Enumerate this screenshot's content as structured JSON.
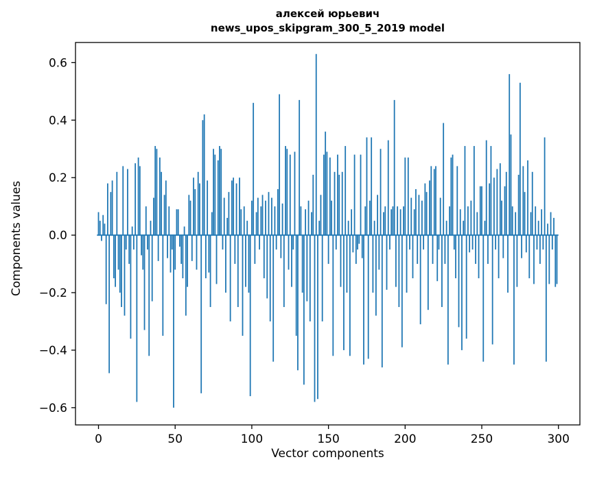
{
  "chart_data": {
    "type": "bar",
    "title": "алексей юрьевич",
    "subtitle": "news_upos_skipgram_300_5_2019 model",
    "xlabel": "Vector components",
    "ylabel": "Components values",
    "xlim": [
      -15,
      314
    ],
    "ylim": [
      -0.66,
      0.67
    ],
    "x_ticks": [
      0,
      50,
      100,
      150,
      200,
      250,
      300
    ],
    "y_ticks": [
      -0.6,
      -0.4,
      -0.2,
      0.0,
      0.2,
      0.4,
      0.6
    ],
    "bar_color": "#1f77b4",
    "grid": false,
    "legend": "none",
    "x": "component index 0..299",
    "values": [
      0.08,
      0.05,
      -0.02,
      0.07,
      0.04,
      -0.24,
      0.18,
      -0.48,
      0.15,
      0.19,
      -0.15,
      -0.18,
      0.22,
      -0.12,
      -0.2,
      -0.25,
      0.24,
      -0.28,
      -0.05,
      0.23,
      -0.1,
      -0.36,
      0.03,
      -0.05,
      0.25,
      -0.58,
      0.27,
      0.24,
      -0.07,
      -0.12,
      -0.33,
      0.1,
      -0.05,
      -0.42,
      0.05,
      -0.23,
      0.13,
      0.31,
      0.3,
      -0.09,
      0.27,
      0.22,
      -0.35,
      0.14,
      0.19,
      -0.08,
      0.1,
      -0.13,
      -0.05,
      -0.6,
      -0.12,
      0.09,
      0.09,
      -0.04,
      -0.1,
      -0.15,
      0.03,
      -0.28,
      -0.18,
      0.14,
      0.12,
      -0.09,
      0.2,
      0.16,
      -0.12,
      0.22,
      0.18,
      -0.55,
      0.4,
      0.42,
      -0.15,
      0.19,
      -0.13,
      -0.25,
      0.08,
      0.3,
      0.28,
      -0.17,
      0.26,
      0.31,
      0.3,
      -0.05,
      0.13,
      -0.2,
      0.06,
      0.15,
      -0.3,
      0.19,
      0.2,
      -0.1,
      0.18,
      -0.25,
      0.2,
      0.09,
      -0.35,
      0.1,
      -0.18,
      0.05,
      -0.2,
      -0.56,
      0.12,
      0.46,
      -0.1,
      0.08,
      0.13,
      -0.05,
      0.1,
      0.14,
      -0.15,
      0.12,
      -0.22,
      0.15,
      -0.3,
      0.13,
      -0.44,
      0.1,
      -0.05,
      0.16,
      0.49,
      -0.08,
      0.11,
      -0.25,
      0.31,
      0.3,
      -0.12,
      0.28,
      -0.18,
      -0.05,
      0.29,
      -0.35,
      -0.47,
      0.47,
      0.1,
      -0.2,
      -0.52,
      0.09,
      -0.23,
      0.12,
      -0.3,
      0.08,
      0.21,
      -0.58,
      0.63,
      -0.57,
      0.05,
      0.14,
      -0.3,
      0.28,
      0.36,
      0.29,
      -0.1,
      0.27,
      0.12,
      -0.42,
      0.22,
      -0.05,
      0.28,
      0.21,
      -0.18,
      0.22,
      -0.4,
      0.31,
      -0.2,
      0.05,
      -0.42,
      0.09,
      -0.06,
      0.28,
      -0.1,
      -0.05,
      -0.03,
      0.28,
      -0.08,
      -0.45,
      0.1,
      0.34,
      -0.43,
      0.12,
      0.34,
      -0.2,
      0.05,
      -0.28,
      0.14,
      -0.12,
      0.3,
      -0.46,
      0.08,
      0.1,
      -0.19,
      0.33,
      -0.05,
      0.09,
      0.1,
      0.47,
      -0.18,
      0.1,
      -0.25,
      0.09,
      -0.39,
      0.1,
      0.27,
      -0.2,
      0.27,
      -0.05,
      0.13,
      -0.15,
      0.09,
      0.16,
      -0.1,
      0.14,
      -0.31,
      0.12,
      -0.05,
      0.18,
      0.15,
      -0.26,
      0.19,
      0.24,
      -0.1,
      0.23,
      0.24,
      -0.16,
      -0.05,
      0.13,
      -0.25,
      0.39,
      -0.1,
      0.05,
      -0.45,
      0.1,
      0.27,
      0.28,
      -0.05,
      -0.15,
      0.24,
      -0.32,
      0.09,
      -0.4,
      0.05,
      0.31,
      -0.36,
      0.1,
      -0.06,
      0.12,
      -0.05,
      0.31,
      -0.1,
      0.08,
      -0.15,
      0.17,
      0.17,
      -0.44,
      0.05,
      0.33,
      -0.1,
      0.18,
      0.31,
      -0.38,
      0.2,
      -0.05,
      0.23,
      -0.15,
      0.25,
      0.12,
      -0.08,
      0.17,
      0.22,
      -0.2,
      0.56,
      0.35,
      0.1,
      -0.45,
      0.08,
      -0.18,
      0.21,
      0.53,
      -0.08,
      0.24,
      0.15,
      -0.06,
      0.26,
      -0.15,
      0.08,
      0.22,
      -0.17,
      0.1,
      -0.05,
      0.05,
      -0.1,
      0.09,
      -0.05,
      0.34,
      -0.44,
      0.04,
      -0.17,
      0.08,
      -0.05,
      0.06,
      -0.18,
      -0.17
    ]
  }
}
